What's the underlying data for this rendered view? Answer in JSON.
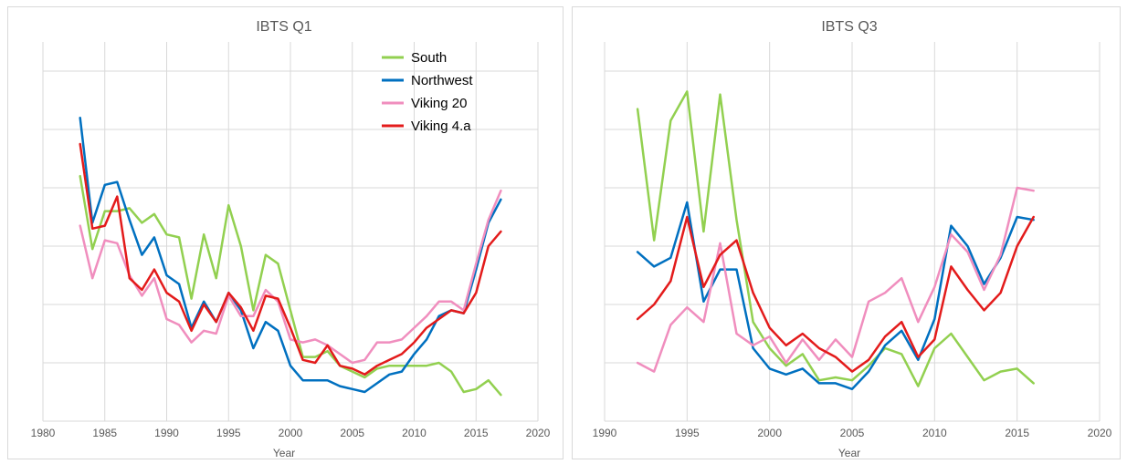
{
  "colors": {
    "South": "#92D050",
    "Northwest": "#0070C0",
    "Viking 20": "#F08EBE",
    "Viking 4.a": "#E31B1B"
  },
  "chart_data": [
    {
      "type": "line",
      "title": "IBTS Q1",
      "xlabel": "Year",
      "ylabel": "",
      "xlim": [
        1980,
        2020
      ],
      "xticks": [
        1980,
        1985,
        1990,
        1995,
        2000,
        2005,
        2010,
        2015,
        2020
      ],
      "ylim": [
        0,
        6.5
      ],
      "ygrid": [
        1,
        2,
        3,
        4,
        5,
        6
      ],
      "grid": true,
      "legend": "top-right",
      "x": [
        1983,
        1984,
        1985,
        1986,
        1987,
        1988,
        1989,
        1990,
        1991,
        1992,
        1993,
        1994,
        1995,
        1996,
        1997,
        1998,
        1999,
        2000,
        2001,
        2002,
        2003,
        2004,
        2005,
        2006,
        2007,
        2008,
        2009,
        2010,
        2011,
        2012,
        2013,
        2014,
        2015,
        2016,
        2017
      ],
      "series": [
        {
          "name": "South",
          "values": [
            4.2,
            2.95,
            3.6,
            3.6,
            3.65,
            3.4,
            3.55,
            3.2,
            3.15,
            2.1,
            3.2,
            2.45,
            3.7,
            3.0,
            1.9,
            2.85,
            2.7,
            1.9,
            1.1,
            1.1,
            1.2,
            0.95,
            0.85,
            0.75,
            0.9,
            0.95,
            0.95,
            0.95,
            0.95,
            1.0,
            0.85,
            0.5,
            0.55,
            0.7,
            0.45
          ]
        },
        {
          "name": "Northwest",
          "values": [
            5.2,
            3.4,
            4.05,
            4.1,
            3.45,
            2.85,
            3.15,
            2.5,
            2.35,
            1.6,
            2.05,
            1.7,
            2.2,
            1.9,
            1.25,
            1.7,
            1.55,
            0.95,
            0.7,
            0.7,
            0.7,
            0.6,
            0.55,
            0.5,
            0.65,
            0.8,
            0.85,
            1.15,
            1.4,
            1.8,
            1.9,
            1.85,
            2.6,
            3.4,
            3.8
          ]
        },
        {
          "name": "Viking 20",
          "values": [
            3.35,
            2.45,
            3.1,
            3.05,
            2.5,
            2.15,
            2.45,
            1.75,
            1.65,
            1.35,
            1.55,
            1.5,
            2.15,
            1.8,
            1.8,
            2.25,
            2.05,
            1.4,
            1.35,
            1.4,
            1.3,
            1.15,
            1.0,
            1.05,
            1.35,
            1.35,
            1.4,
            1.6,
            1.8,
            2.05,
            2.05,
            1.9,
            2.7,
            3.45,
            3.95
          ]
        },
        {
          "name": "Viking 4.a",
          "values": [
            4.75,
            3.3,
            3.35,
            3.85,
            2.45,
            2.25,
            2.6,
            2.2,
            2.05,
            1.55,
            2.0,
            1.7,
            2.2,
            1.95,
            1.55,
            2.15,
            2.1,
            1.6,
            1.05,
            1.0,
            1.3,
            0.95,
            0.9,
            0.8,
            0.95,
            1.05,
            1.15,
            1.35,
            1.6,
            1.75,
            1.9,
            1.85,
            2.2,
            3.0,
            3.25
          ]
        }
      ]
    },
    {
      "type": "line",
      "title": "IBTS Q3",
      "xlabel": "Year",
      "ylabel": "",
      "xlim": [
        1990,
        2020
      ],
      "xticks": [
        1990,
        1995,
        2000,
        2005,
        2010,
        2015,
        2020
      ],
      "ylim": [
        0,
        6.5
      ],
      "ygrid": [
        1,
        2,
        3,
        4,
        5,
        6
      ],
      "grid": true,
      "legend": "none",
      "x": [
        1992,
        1993,
        1994,
        1995,
        1996,
        1997,
        1998,
        1999,
        2000,
        2001,
        2002,
        2003,
        2004,
        2005,
        2006,
        2007,
        2008,
        2009,
        2010,
        2011,
        2012,
        2013,
        2014,
        2015,
        2016
      ],
      "series": [
        {
          "name": "South",
          "values": [
            5.35,
            3.1,
            5.15,
            5.65,
            3.25,
            5.6,
            3.45,
            1.7,
            1.25,
            0.95,
            1.15,
            0.7,
            0.75,
            0.7,
            0.95,
            1.25,
            1.15,
            0.6,
            1.25,
            1.5,
            1.1,
            0.7,
            0.85,
            0.9,
            0.65
          ]
        },
        {
          "name": "Northwest",
          "values": [
            2.9,
            2.65,
            2.8,
            3.75,
            2.05,
            2.6,
            2.6,
            1.25,
            0.9,
            0.8,
            0.9,
            0.65,
            0.65,
            0.55,
            0.85,
            1.3,
            1.55,
            1.05,
            1.75,
            3.35,
            3.0,
            2.35,
            2.8,
            3.5,
            3.45
          ]
        },
        {
          "name": "Viking 20",
          "values": [
            1.0,
            0.85,
            1.65,
            1.95,
            1.7,
            3.05,
            1.5,
            1.3,
            1.45,
            1.0,
            1.4,
            1.05,
            1.4,
            1.1,
            2.05,
            2.2,
            2.45,
            1.7,
            2.3,
            3.2,
            2.9,
            2.25,
            2.85,
            4.0,
            3.95
          ]
        },
        {
          "name": "Viking 4.a",
          "values": [
            1.75,
            2.0,
            2.4,
            3.5,
            2.3,
            2.85,
            3.1,
            2.2,
            1.6,
            1.3,
            1.5,
            1.25,
            1.1,
            0.85,
            1.05,
            1.45,
            1.7,
            1.1,
            1.4,
            2.65,
            2.25,
            1.9,
            2.2,
            3.0,
            3.5
          ]
        }
      ]
    }
  ]
}
